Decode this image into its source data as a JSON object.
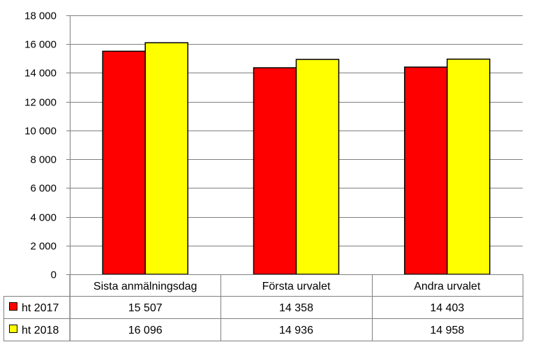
{
  "chart_data": {
    "type": "bar",
    "categories": [
      "Sista anmälningsdag",
      "Första urvalet",
      "Andra urvalet"
    ],
    "series": [
      {
        "name": "ht 2017",
        "color": "#ff0000",
        "values": [
          15507,
          14358,
          14403
        ],
        "value_labels": [
          "15 507",
          "14 358",
          "14 403"
        ]
      },
      {
        "name": "ht 2018",
        "color": "#ffff00",
        "values": [
          16096,
          14936,
          14958
        ],
        "value_labels": [
          "16 096",
          "14 936",
          "14 958"
        ]
      }
    ],
    "ylim": [
      0,
      18000
    ],
    "yticks": [
      0,
      2000,
      4000,
      6000,
      8000,
      10000,
      12000,
      14000,
      16000,
      18000
    ],
    "ytick_labels": [
      "0",
      "2 000",
      "4 000",
      "6 000",
      "8 000",
      "10 000",
      "12 000",
      "14 000",
      "16 000",
      "18 000"
    ],
    "grid": true,
    "legend": "data-table"
  }
}
